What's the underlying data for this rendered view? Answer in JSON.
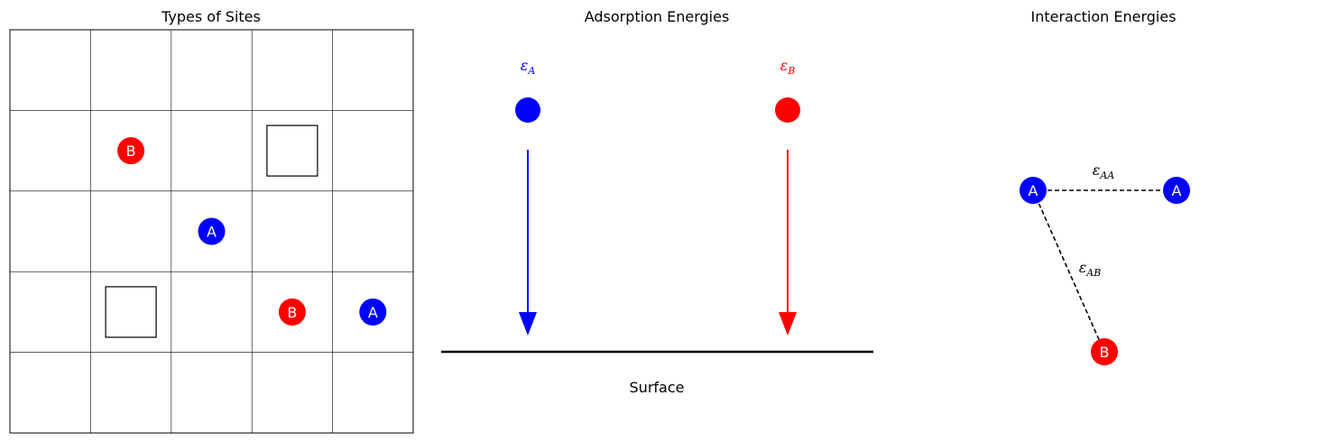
{
  "panels": {
    "sites": {
      "title": "Types of Sites",
      "rows": 5,
      "cols": 5,
      "occupants": [
        {
          "row": 1,
          "col": 1,
          "species": "B"
        },
        {
          "row": 2,
          "col": 2,
          "species": "A"
        },
        {
          "row": 3,
          "col": 3,
          "species": "B"
        },
        {
          "row": 3,
          "col": 4,
          "species": "A"
        }
      ],
      "vacancies": [
        {
          "row": 1,
          "col": 3
        },
        {
          "row": 3,
          "col": 1
        }
      ]
    },
    "adsorption": {
      "title": "Adsorption Energies",
      "symbol": "ε",
      "species": [
        {
          "name": "A",
          "label_sub": "A"
        },
        {
          "name": "B",
          "label_sub": "B"
        }
      ],
      "surface_label": "Surface"
    },
    "interaction": {
      "title": "Interaction Energies",
      "symbol": "ε",
      "nodes": [
        {
          "id": "n1",
          "species": "A"
        },
        {
          "id": "n2",
          "species": "A"
        },
        {
          "id": "n3",
          "species": "B"
        }
      ],
      "bonds": [
        {
          "from": "n1",
          "to": "n2",
          "label_sub": "AA"
        },
        {
          "from": "n1",
          "to": "n3",
          "label_sub": "AB"
        }
      ]
    }
  },
  "colors": {
    "A": "#0000ff",
    "B": "#ff0000",
    "grid": "#000000",
    "surface": "#000000"
  }
}
